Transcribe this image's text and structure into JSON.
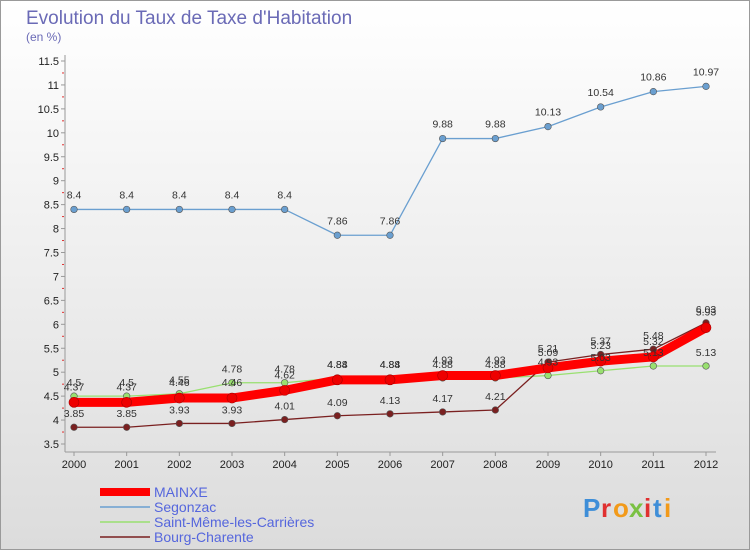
{
  "chart_data": {
    "type": "line",
    "title": "Evolution du Taux de Taxe d'Habitation",
    "subtitle": "(en %)",
    "x": [
      "2000",
      "2001",
      "2002",
      "2003",
      "2004",
      "2005",
      "2006",
      "2007",
      "2008",
      "2009",
      "2010",
      "2011",
      "2012"
    ],
    "ylim": [
      3.5,
      11.5
    ],
    "yticks": [
      3.5,
      4,
      4.5,
      5,
      5.5,
      6,
      6.5,
      7,
      7.5,
      8,
      8.5,
      9,
      9.5,
      10,
      10.5,
      11,
      11.5
    ],
    "grid": false,
    "legend_position": "bottom-left",
    "series": [
      {
        "name": "MAINXE",
        "color": "#ff0000",
        "values": [
          4.37,
          4.37,
          4.46,
          4.46,
          4.62,
          4.84,
          4.84,
          4.93,
          4.93,
          5.09,
          5.23,
          5.32,
          5.93
        ],
        "labels": [
          "4.37",
          "4.37",
          "4.46",
          "4.46",
          "4.62",
          "4.84",
          "4.84",
          "4.93",
          "4.93",
          "5.09",
          "5.23",
          "5.32",
          "5.93"
        ]
      },
      {
        "name": "Segonzac",
        "color": "#6a9fd0",
        "values": [
          8.4,
          8.4,
          8.4,
          8.4,
          8.4,
          7.86,
          7.86,
          9.88,
          9.88,
          10.13,
          10.54,
          10.86,
          10.97
        ],
        "labels": [
          "8.4",
          "8.4",
          "8.4",
          "8.4",
          "8.4",
          "7.86",
          "7.86",
          "9.88",
          "9.88",
          "10.13",
          "10.54",
          "10.86",
          "10.97"
        ]
      },
      {
        "name": "Saint-Même-les-Carrières",
        "color": "#99e070",
        "values": [
          4.5,
          4.5,
          4.55,
          4.78,
          4.78,
          4.88,
          4.88,
          4.88,
          4.88,
          4.93,
          5.03,
          5.13,
          5.13
        ],
        "labels": [
          "4.5",
          "4.5",
          "4.55",
          "4.78",
          "4.78",
          "4.88",
          "4.88",
          "4.88",
          "4.88",
          "4.93",
          "5.03",
          "5.13",
          "5.13"
        ]
      },
      {
        "name": "Bourg-Charente",
        "color": "#7a2020",
        "values": [
          3.85,
          3.85,
          3.93,
          3.93,
          4.01,
          4.09,
          4.13,
          4.17,
          4.21,
          5.21,
          5.37,
          5.48,
          6.03
        ],
        "labels": [
          "3.85",
          "3.85",
          "3.93",
          "3.93",
          "4.01",
          "4.09",
          "4.13",
          "4.17",
          "4.21",
          "5.21",
          "5.37",
          "5.48",
          "6.03"
        ]
      }
    ]
  },
  "brand": {
    "name": "Proxiti",
    "letters": [
      "P",
      "r",
      "o",
      "x",
      "i",
      "t",
      "i"
    ],
    "colors": [
      "#3e8ed8",
      "#e03030",
      "#f29a1a",
      "#7ac142",
      "#e03030",
      "#3e8ed8",
      "#f29a1a"
    ]
  }
}
